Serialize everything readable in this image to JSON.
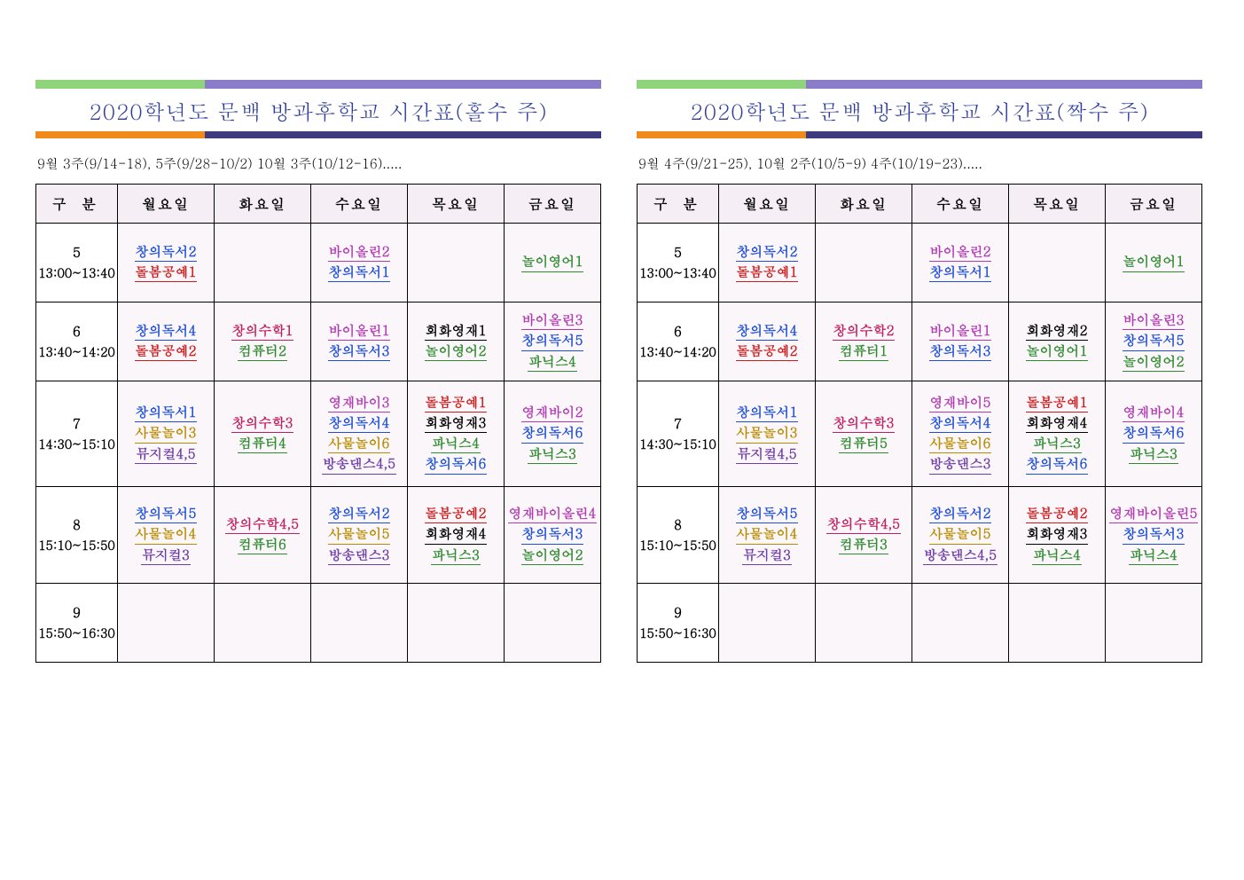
{
  "colors": {
    "top_green": "#8fd47a",
    "top_purple": "#8a7cc9",
    "under_orange": "#f08a1a",
    "under_navy": "#3d3a80",
    "title_text": "#2e3e9e",
    "header_bg": "#f5eef5",
    "cell_bg": "#faf6fa",
    "border": "#000000"
  },
  "day_labels": [
    "구  분",
    "월요일",
    "화요일",
    "수요일",
    "목요일",
    "금요일"
  ],
  "left": {
    "title": "2020학년도 문백 방과후학교 시간표(홀수 주)",
    "subtitle": "9월 3주(9/14-18), 5주(9/28-10/2) 10월 3주(10/12-16)....."
  },
  "right": {
    "title": "2020학년도 문백 방과후학교 시간표(짝수 주)",
    "subtitle": "9월 4주(9/21-25), 10월 2주(10/5-9) 4주(10/19-23)....."
  },
  "periods": [
    {
      "num": "5",
      "time": "13:00~13:40"
    },
    {
      "num": "6",
      "time": "13:40~14:20"
    },
    {
      "num": "7",
      "time": "14:30~15:10"
    },
    {
      "num": "8",
      "time": "15:10~15:50"
    },
    {
      "num": "9",
      "time": "15:50~16:30"
    }
  ],
  "left_grid": [
    [
      [
        {
          "t": "창의독서2",
          "c": "#1e4fd6"
        },
        {
          "t": "돌봄공예1",
          "c": "#d11a1a"
        }
      ],
      [],
      [
        {
          "t": "바이올린2",
          "c": "#b23ab2"
        },
        {
          "t": "창의독서1",
          "c": "#1e4fd6"
        }
      ],
      [],
      [
        {
          "t": "놀이영어1",
          "c": "#2e8b2e"
        }
      ]
    ],
    [
      [
        {
          "t": "창의독서4",
          "c": "#1e4fd6"
        },
        {
          "t": "돌봄공예2",
          "c": "#d11a1a"
        }
      ],
      [
        {
          "t": "창의수학1",
          "c": "#c01f5f"
        },
        {
          "t": "컴퓨터2",
          "c": "#2e8b2e"
        }
      ],
      [
        {
          "t": "바이올린1",
          "c": "#b23ab2"
        },
        {
          "t": "창의독서3",
          "c": "#1e4fd6"
        }
      ],
      [
        {
          "t": "회화영재1",
          "c": "#000000"
        },
        {
          "t": "놀이영어2",
          "c": "#2e8b2e"
        }
      ],
      [
        {
          "t": "바이올린3",
          "c": "#b23ab2"
        },
        {
          "t": "창의독서5",
          "c": "#1e4fd6"
        },
        {
          "t": "파닉스4",
          "c": "#2e8b2e"
        }
      ]
    ],
    [
      [
        {
          "t": "창의독서1",
          "c": "#1e4fd6"
        },
        {
          "t": "사물놀이3",
          "c": "#b98b00"
        },
        {
          "t": "뮤지컬4,5",
          "c": "#6e3da8"
        }
      ],
      [
        {
          "t": "창의수학3",
          "c": "#c01f5f"
        },
        {
          "t": "컴퓨터4",
          "c": "#2e8b2e"
        }
      ],
      [
        {
          "t": "영재바이3",
          "c": "#b23ab2"
        },
        {
          "t": "창의독서4",
          "c": "#1e4fd6"
        },
        {
          "t": "사물놀이6",
          "c": "#b98b00"
        },
        {
          "t": "방송댄스4,5",
          "c": "#6e3da8"
        }
      ],
      [
        {
          "t": "돌봄공예1",
          "c": "#d11a1a"
        },
        {
          "t": "회화영재3",
          "c": "#000000"
        },
        {
          "t": "파닉스4",
          "c": "#2e8b2e"
        },
        {
          "t": "창의독서6",
          "c": "#1e4fd6"
        }
      ],
      [
        {
          "t": "영재바이2",
          "c": "#b23ab2"
        },
        {
          "t": "창의독서6",
          "c": "#1e4fd6"
        },
        {
          "t": "파닉스3",
          "c": "#2e8b2e"
        }
      ]
    ],
    [
      [
        {
          "t": "창의독서5",
          "c": "#1e4fd6"
        },
        {
          "t": "사물놀이4",
          "c": "#b98b00"
        },
        {
          "t": "뮤지컬3",
          "c": "#6e3da8"
        }
      ],
      [
        {
          "t": "창의수학4,5",
          "c": "#c01f5f"
        },
        {
          "t": "컴퓨터6",
          "c": "#2e8b2e"
        }
      ],
      [
        {
          "t": "창의독서2",
          "c": "#1e4fd6"
        },
        {
          "t": "사물놀이5",
          "c": "#b98b00"
        },
        {
          "t": "방송댄스3",
          "c": "#6e3da8"
        }
      ],
      [
        {
          "t": "돌봄공예2",
          "c": "#d11a1a"
        },
        {
          "t": "회화영재4",
          "c": "#000000"
        },
        {
          "t": "파닉스3",
          "c": "#2e8b2e"
        }
      ],
      [
        {
          "t": "영재바이올린4",
          "c": "#b23ab2"
        },
        {
          "t": "창의독서3",
          "c": "#1e4fd6"
        },
        {
          "t": "놀이영어2",
          "c": "#2e8b2e"
        }
      ]
    ],
    [
      [],
      [],
      [],
      [],
      []
    ]
  ],
  "right_grid": [
    [
      [
        {
          "t": "창의독서2",
          "c": "#1e4fd6"
        },
        {
          "t": "돌봄공예1",
          "c": "#d11a1a"
        }
      ],
      [],
      [
        {
          "t": "바이올린2",
          "c": "#b23ab2"
        },
        {
          "t": "창의독서1",
          "c": "#1e4fd6"
        }
      ],
      [],
      [
        {
          "t": "놀이영어1",
          "c": "#2e8b2e"
        }
      ]
    ],
    [
      [
        {
          "t": "창의독서4",
          "c": "#1e4fd6"
        },
        {
          "t": "돌봄공예2",
          "c": "#d11a1a"
        }
      ],
      [
        {
          "t": "창의수학2",
          "c": "#c01f5f"
        },
        {
          "t": "컴퓨터1",
          "c": "#2e8b2e"
        }
      ],
      [
        {
          "t": "바이올린1",
          "c": "#b23ab2"
        },
        {
          "t": "창의독서3",
          "c": "#1e4fd6"
        }
      ],
      [
        {
          "t": "회화영재2",
          "c": "#000000"
        },
        {
          "t": "놀이영어1",
          "c": "#2e8b2e"
        }
      ],
      [
        {
          "t": "바이올린3",
          "c": "#b23ab2"
        },
        {
          "t": "창의독서5",
          "c": "#1e4fd6"
        },
        {
          "t": "놀이영어2",
          "c": "#2e8b2e"
        }
      ]
    ],
    [
      [
        {
          "t": "창의독서1",
          "c": "#1e4fd6"
        },
        {
          "t": "사물놀이3",
          "c": "#b98b00"
        },
        {
          "t": "뮤지컬4,5",
          "c": "#6e3da8"
        }
      ],
      [
        {
          "t": "창의수학3",
          "c": "#c01f5f"
        },
        {
          "t": "컴퓨터5",
          "c": "#2e8b2e"
        }
      ],
      [
        {
          "t": "영재바이5",
          "c": "#b23ab2"
        },
        {
          "t": "창의독서4",
          "c": "#1e4fd6"
        },
        {
          "t": "사물놀이6",
          "c": "#b98b00"
        },
        {
          "t": "방송댄스3",
          "c": "#6e3da8"
        }
      ],
      [
        {
          "t": "돌봄공예1",
          "c": "#d11a1a"
        },
        {
          "t": "회화영재4",
          "c": "#000000"
        },
        {
          "t": "파닉스3",
          "c": "#2e8b2e"
        },
        {
          "t": "창의독서6",
          "c": "#1e4fd6"
        }
      ],
      [
        {
          "t": "영재바이4",
          "c": "#b23ab2"
        },
        {
          "t": "창의독서6",
          "c": "#1e4fd6"
        },
        {
          "t": "파닉스3",
          "c": "#2e8b2e"
        }
      ]
    ],
    [
      [
        {
          "t": "창의독서5",
          "c": "#1e4fd6"
        },
        {
          "t": "사물놀이4",
          "c": "#b98b00"
        },
        {
          "t": "뮤지컬3",
          "c": "#6e3da8"
        }
      ],
      [
        {
          "t": "창의수학4,5",
          "c": "#c01f5f"
        },
        {
          "t": "컴퓨터3",
          "c": "#2e8b2e"
        }
      ],
      [
        {
          "t": "창의독서2",
          "c": "#1e4fd6"
        },
        {
          "t": "사물놀이5",
          "c": "#b98b00"
        },
        {
          "t": "방송댄스4,5",
          "c": "#6e3da8"
        }
      ],
      [
        {
          "t": "돌봄공예2",
          "c": "#d11a1a"
        },
        {
          "t": "회화영재3",
          "c": "#000000"
        },
        {
          "t": "파닉스4",
          "c": "#2e8b2e"
        }
      ],
      [
        {
          "t": "영재바이올린5",
          "c": "#b23ab2"
        },
        {
          "t": "창의독서3",
          "c": "#1e4fd6"
        },
        {
          "t": "파닉스4",
          "c": "#2e8b2e"
        }
      ]
    ],
    [
      [],
      [],
      [],
      [],
      []
    ]
  ]
}
